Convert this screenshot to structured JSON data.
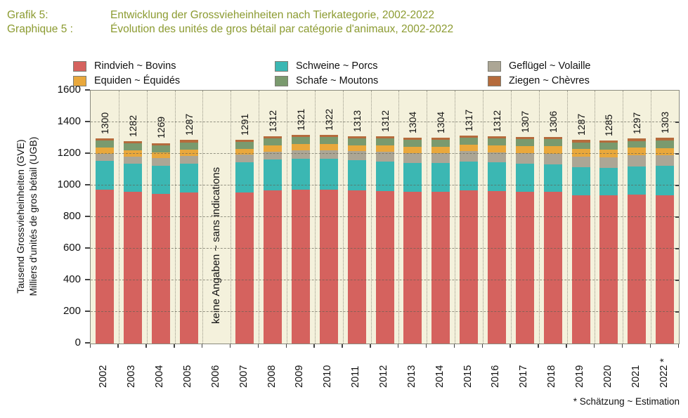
{
  "header": {
    "row1_label": "Grafik 5:",
    "row1_title": "Entwicklung der Grossvieheinheiten nach Tierkategorie, 2002-2022",
    "row2_label": "Graphique 5 :",
    "row2_title": "Évolution des unités de gros bétail par catégorie d'animaux, 2002-2022",
    "color": "#8C9B31"
  },
  "legend": {
    "items": [
      {
        "label": "Rindvieh ~ Bovins",
        "color": "#D5625E"
      },
      {
        "label": "Schweine ~ Porcs",
        "color": "#3BB7B3"
      },
      {
        "label": "Geflügel ~ Volaille",
        "color": "#ACA695"
      },
      {
        "label": "Equiden ~ Équidés",
        "color": "#E9A83C"
      },
      {
        "label": "Schafe ~ Moutons",
        "color": "#7A9A6E"
      },
      {
        "label": "Ziegen ~ Chèvres",
        "color": "#B56B3C"
      }
    ]
  },
  "chart_data": {
    "type": "bar",
    "stacked": true,
    "title_de": "Entwicklung der Grossvieheinheiten nach Tierkategorie, 2002-2022",
    "title_fr": "Évolution des unités de gros bétail par catégorie d'animaux, 2002-2022",
    "ylabel_line1": "Tausend Grossvieheinheiten (GVE)",
    "ylabel_line2": "Milliers d'unités de gros bétail (UGB)",
    "ylim": [
      0,
      1600
    ],
    "ytick_step": 200,
    "yticks": [
      0,
      200,
      400,
      600,
      800,
      1000,
      1200,
      1400,
      1600
    ],
    "grid": true,
    "legend_position": "top",
    "plot_bg": "#F4F1DC",
    "categories": [
      "2002",
      "2003",
      "2004",
      "2005",
      "2006",
      "2007",
      "2008",
      "2009",
      "2010",
      "2011",
      "2012",
      "2013",
      "2014",
      "2015",
      "2016",
      "2017",
      "2018",
      "2019",
      "2020",
      "2021",
      "2022"
    ],
    "totals": [
      1300,
      1282,
      1269,
      1287,
      null,
      1291,
      1312,
      1321,
      1322,
      1313,
      1312,
      1304,
      1304,
      1317,
      1312,
      1307,
      1306,
      1287,
      1285,
      1297,
      1303
    ],
    "series": [
      {
        "name": "Rindvieh ~ Bovins",
        "color": "#D5625E",
        "values": [
          975,
          960,
          945,
          955,
          null,
          955,
          970,
          975,
          975,
          968,
          965,
          960,
          960,
          970,
          965,
          960,
          958,
          940,
          937,
          942,
          938
        ]
      },
      {
        "name": "Schweine ~ Porcs",
        "color": "#3BB7B3",
        "values": [
          180,
          178,
          180,
          185,
          null,
          190,
          193,
          195,
          193,
          190,
          188,
          184,
          182,
          182,
          180,
          178,
          177,
          175,
          174,
          178,
          185
        ]
      },
      {
        "name": "Geflügel ~ Volaille",
        "color": "#ACA695",
        "values": [
          45,
          46,
          47,
          48,
          null,
          50,
          52,
          54,
          56,
          58,
          60,
          61,
          62,
          64,
          65,
          66,
          67,
          68,
          69,
          70,
          67
        ]
      },
      {
        "name": "Equiden ~ Équidés",
        "color": "#E9A83C",
        "values": [
          40,
          40,
          39,
          39,
          null,
          38,
          38,
          38,
          39,
          39,
          40,
          40,
          41,
          42,
          43,
          44,
          45,
          46,
          47,
          48,
          44
        ]
      },
      {
        "name": "Schafe ~ Moutons",
        "color": "#7A9A6E",
        "values": [
          46,
          44,
          44,
          46,
          null,
          44,
          45,
          45,
          45,
          44,
          45,
          45,
          45,
          45,
          45,
          45,
          45,
          44,
          44,
          44,
          52
        ]
      },
      {
        "name": "Ziegen ~ Chèvres",
        "color": "#B56B3C",
        "values": [
          14,
          14,
          14,
          14,
          null,
          14,
          14,
          14,
          14,
          14,
          14,
          14,
          14,
          14,
          14,
          14,
          14,
          14,
          14,
          15,
          17
        ]
      }
    ],
    "missing_category": "2006",
    "missing_label": "keine Angaben ~ sans indications",
    "estimated_category": "2022",
    "estimated_marker": "*"
  },
  "footnote": "* Schätzung ~ Estimation"
}
